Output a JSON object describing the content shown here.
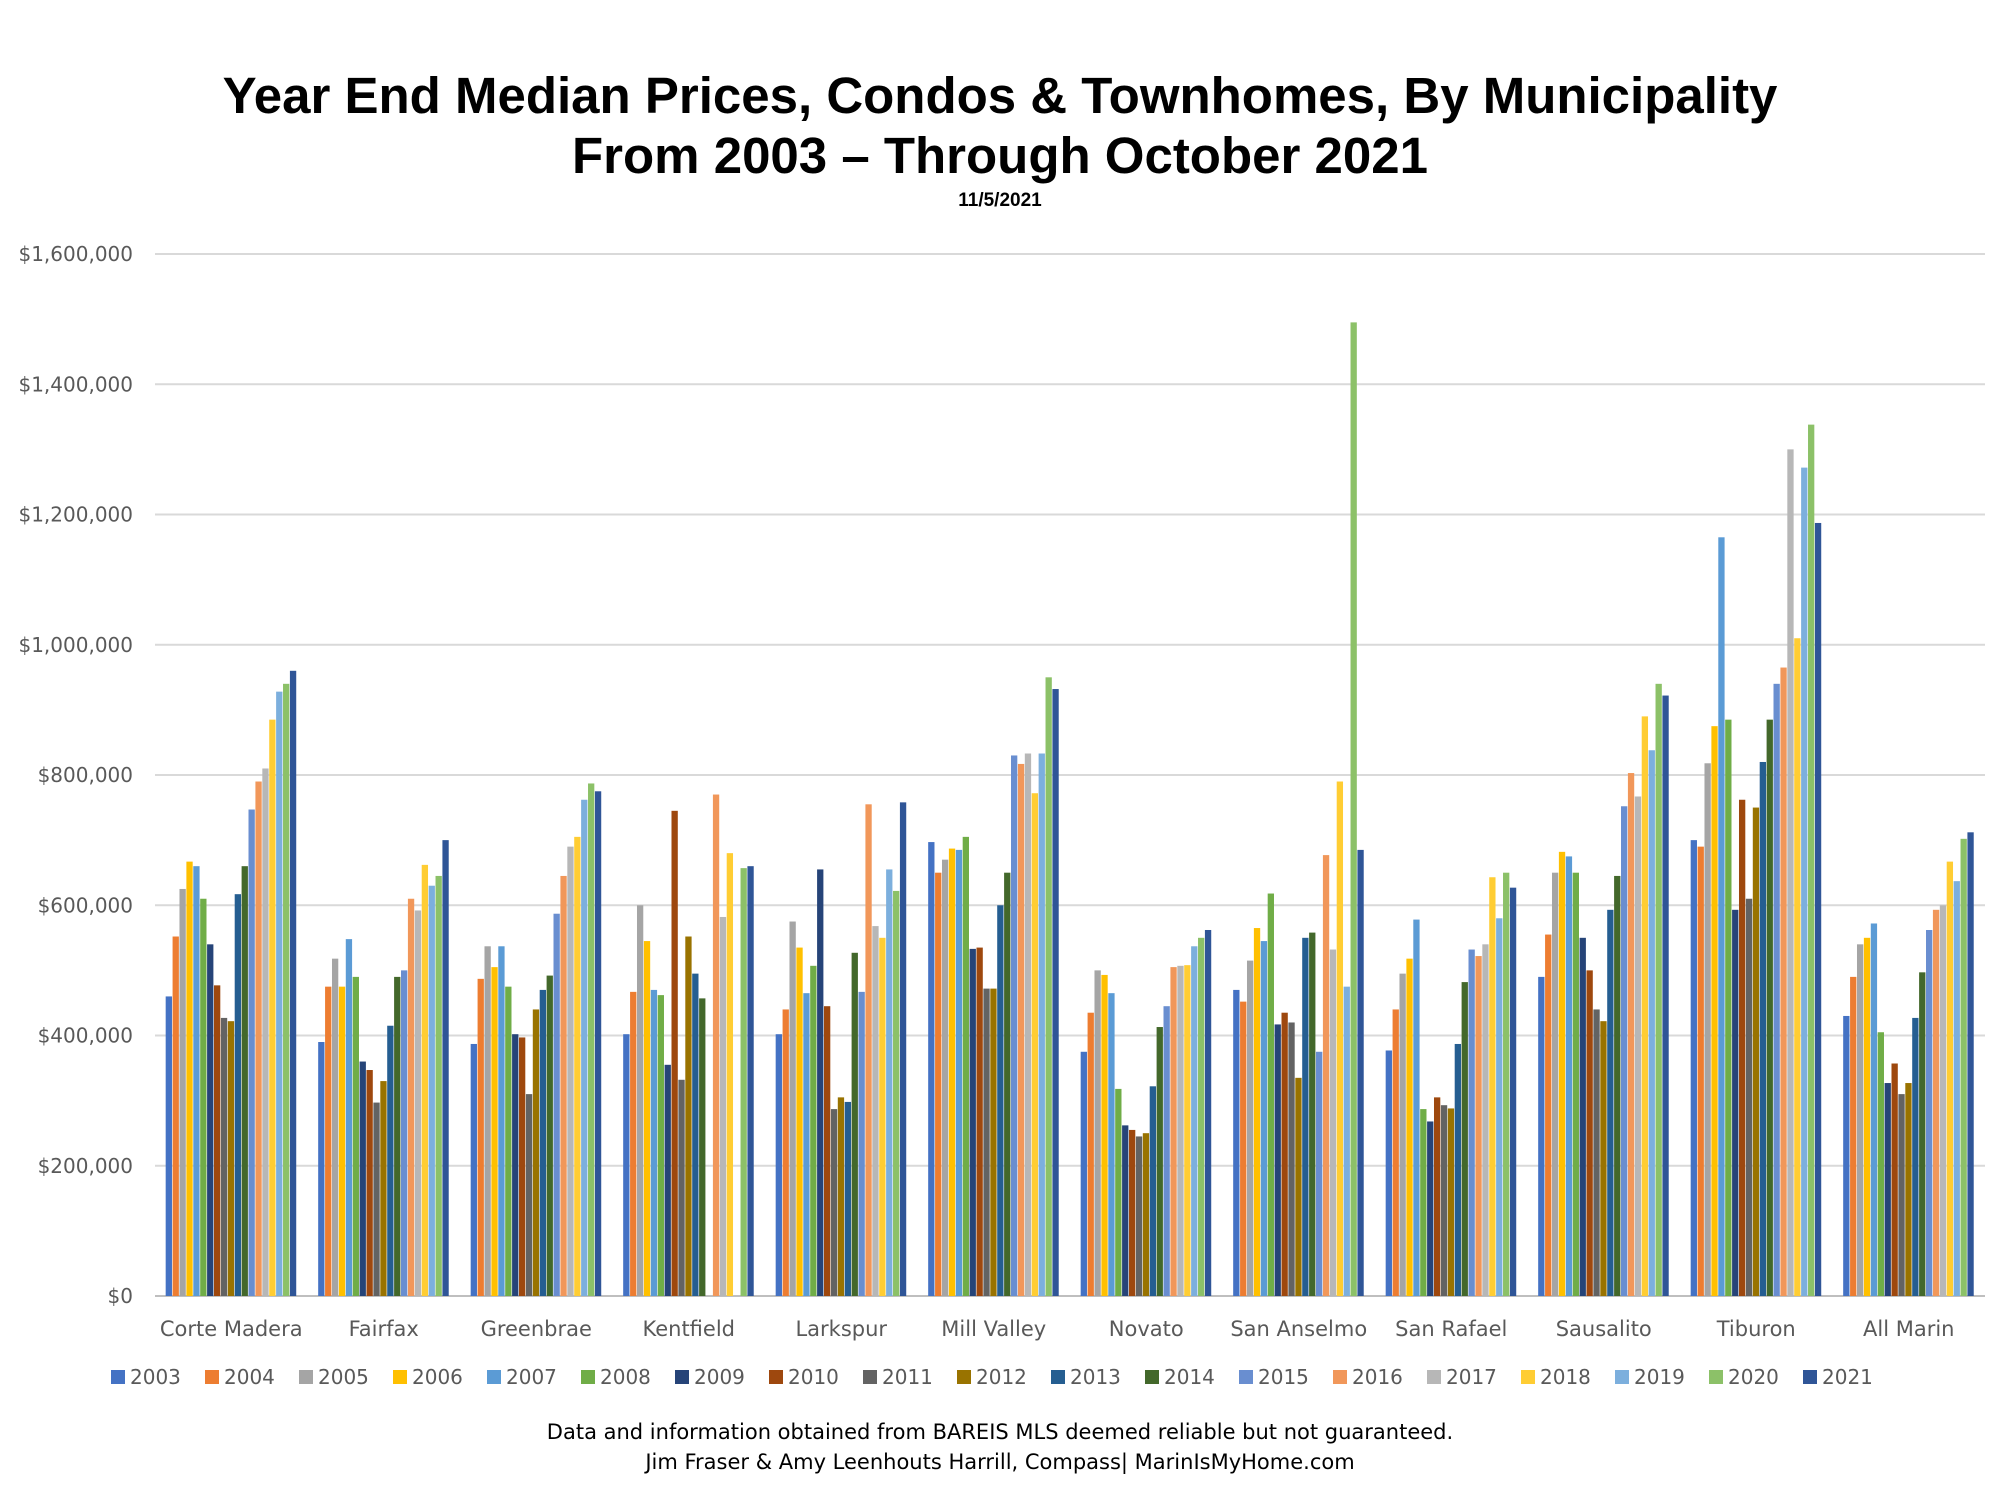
{
  "title_line1": "Year End Median Prices, Condos & Townhomes, By Municipality",
  "title_line2": "From 2003 – Through October 2021",
  "subtitle": "11/5/2021",
  "footer_line1": "Data and information obtained from BAREIS MLS deemed reliable but not guaranteed.",
  "footer_line2": "Jim Fraser & Amy Leenhouts Harrill, Compass| MarinIsMyHome.com",
  "chart_data": {
    "type": "bar",
    "title": "Year End Median Prices, Condos & Townhomes, By Municipality",
    "subtitle": "From 2003 – Through October 2021",
    "xlabel": "",
    "ylabel": "",
    "ylim": [
      0,
      1600000
    ],
    "y_ticks": [
      0,
      200000,
      400000,
      600000,
      800000,
      1000000,
      1200000,
      1400000,
      1600000
    ],
    "y_tick_labels": [
      "$0",
      "$200,000",
      "$400,000",
      "$600,000",
      "$800,000",
      "$1,000,000",
      "$1,200,000",
      "$1,400,000",
      "$1,600,000"
    ],
    "grid": true,
    "legend_position": "bottom",
    "categories": [
      "Corte Madera",
      "Fairfax",
      "Greenbrae",
      "Kentfield",
      "Larkspur",
      "Mill Valley",
      "Novato",
      "San Anselmo",
      "San Rafael",
      "Sausalito",
      "Tiburon",
      "All Marin"
    ],
    "series": [
      {
        "name": "2003",
        "color": "#4472C4",
        "values": [
          460000,
          390000,
          387000,
          402000,
          402000,
          697000,
          375000,
          470000,
          377000,
          490000,
          700000,
          430000
        ]
      },
      {
        "name": "2004",
        "color": "#ED7D31",
        "values": [
          552000,
          475000,
          487000,
          467000,
          440000,
          650000,
          435000,
          452000,
          440000,
          555000,
          690000,
          490000
        ]
      },
      {
        "name": "2005",
        "color": "#A5A5A5",
        "values": [
          625000,
          518000,
          537000,
          600000,
          575000,
          670000,
          500000,
          515000,
          495000,
          650000,
          818000,
          540000
        ]
      },
      {
        "name": "2006",
        "color": "#FFC000",
        "values": [
          667000,
          475000,
          505000,
          545000,
          535000,
          687000,
          493000,
          565000,
          518000,
          682000,
          875000,
          550000
        ]
      },
      {
        "name": "2007",
        "color": "#5B9BD5",
        "values": [
          660000,
          548000,
          537000,
          470000,
          465000,
          685000,
          465000,
          545000,
          578000,
          675000,
          1165000,
          572000
        ]
      },
      {
        "name": "2008",
        "color": "#70AD47",
        "values": [
          610000,
          490000,
          475000,
          462000,
          507000,
          705000,
          318000,
          618000,
          287000,
          650000,
          885000,
          405000
        ]
      },
      {
        "name": "2009",
        "color": "#264478",
        "values": [
          540000,
          360000,
          402000,
          355000,
          655000,
          533000,
          262000,
          417000,
          268000,
          550000,
          593000,
          327000
        ]
      },
      {
        "name": "2010",
        "color": "#9E480E",
        "values": [
          477000,
          347000,
          397000,
          745000,
          445000,
          535000,
          255000,
          435000,
          305000,
          500000,
          762000,
          357000
        ]
      },
      {
        "name": "2011",
        "color": "#636363",
        "values": [
          427000,
          297000,
          310000,
          332000,
          287000,
          472000,
          245000,
          420000,
          293000,
          440000,
          610000,
          310000
        ]
      },
      {
        "name": "2012",
        "color": "#997300",
        "values": [
          422000,
          330000,
          440000,
          552000,
          305000,
          472000,
          250000,
          335000,
          288000,
          422000,
          750000,
          327000
        ]
      },
      {
        "name": "2013",
        "color": "#255E91",
        "values": [
          617000,
          415000,
          470000,
          495000,
          298000,
          600000,
          322000,
          550000,
          387000,
          593000,
          820000,
          427000
        ]
      },
      {
        "name": "2014",
        "color": "#43682B",
        "values": [
          660000,
          490000,
          492000,
          457000,
          527000,
          650000,
          413000,
          558000,
          482000,
          645000,
          885000,
          497000
        ]
      },
      {
        "name": "2015",
        "color": "#698ED0",
        "values": [
          747000,
          500000,
          587000,
          null,
          467000,
          830000,
          445000,
          375000,
          532000,
          752000,
          940000,
          562000
        ]
      },
      {
        "name": "2016",
        "color": "#F1975A",
        "values": [
          790000,
          610000,
          645000,
          770000,
          755000,
          817000,
          505000,
          677000,
          522000,
          803000,
          965000,
          593000
        ]
      },
      {
        "name": "2017",
        "color": "#B7B7B7",
        "values": [
          810000,
          592000,
          690000,
          582000,
          568000,
          833000,
          507000,
          532000,
          540000,
          767000,
          1300000,
          600000
        ]
      },
      {
        "name": "2018",
        "color": "#FFCD33",
        "values": [
          885000,
          662000,
          705000,
          680000,
          550000,
          772000,
          508000,
          790000,
          643000,
          890000,
          1010000,
          667000
        ]
      },
      {
        "name": "2019",
        "color": "#7CAFDD",
        "values": [
          928000,
          630000,
          762000,
          null,
          655000,
          833000,
          537000,
          475000,
          580000,
          838000,
          1272000,
          637000
        ]
      },
      {
        "name": "2020",
        "color": "#8CC168",
        "values": [
          940000,
          645000,
          787000,
          657000,
          622000,
          950000,
          550000,
          1495000,
          650000,
          940000,
          1338000,
          702000
        ]
      },
      {
        "name": "2021",
        "color": "#2F5597",
        "values": [
          960000,
          700000,
          775000,
          660000,
          758000,
          932000,
          562000,
          685000,
          627000,
          922000,
          1187000,
          712000
        ]
      }
    ]
  }
}
